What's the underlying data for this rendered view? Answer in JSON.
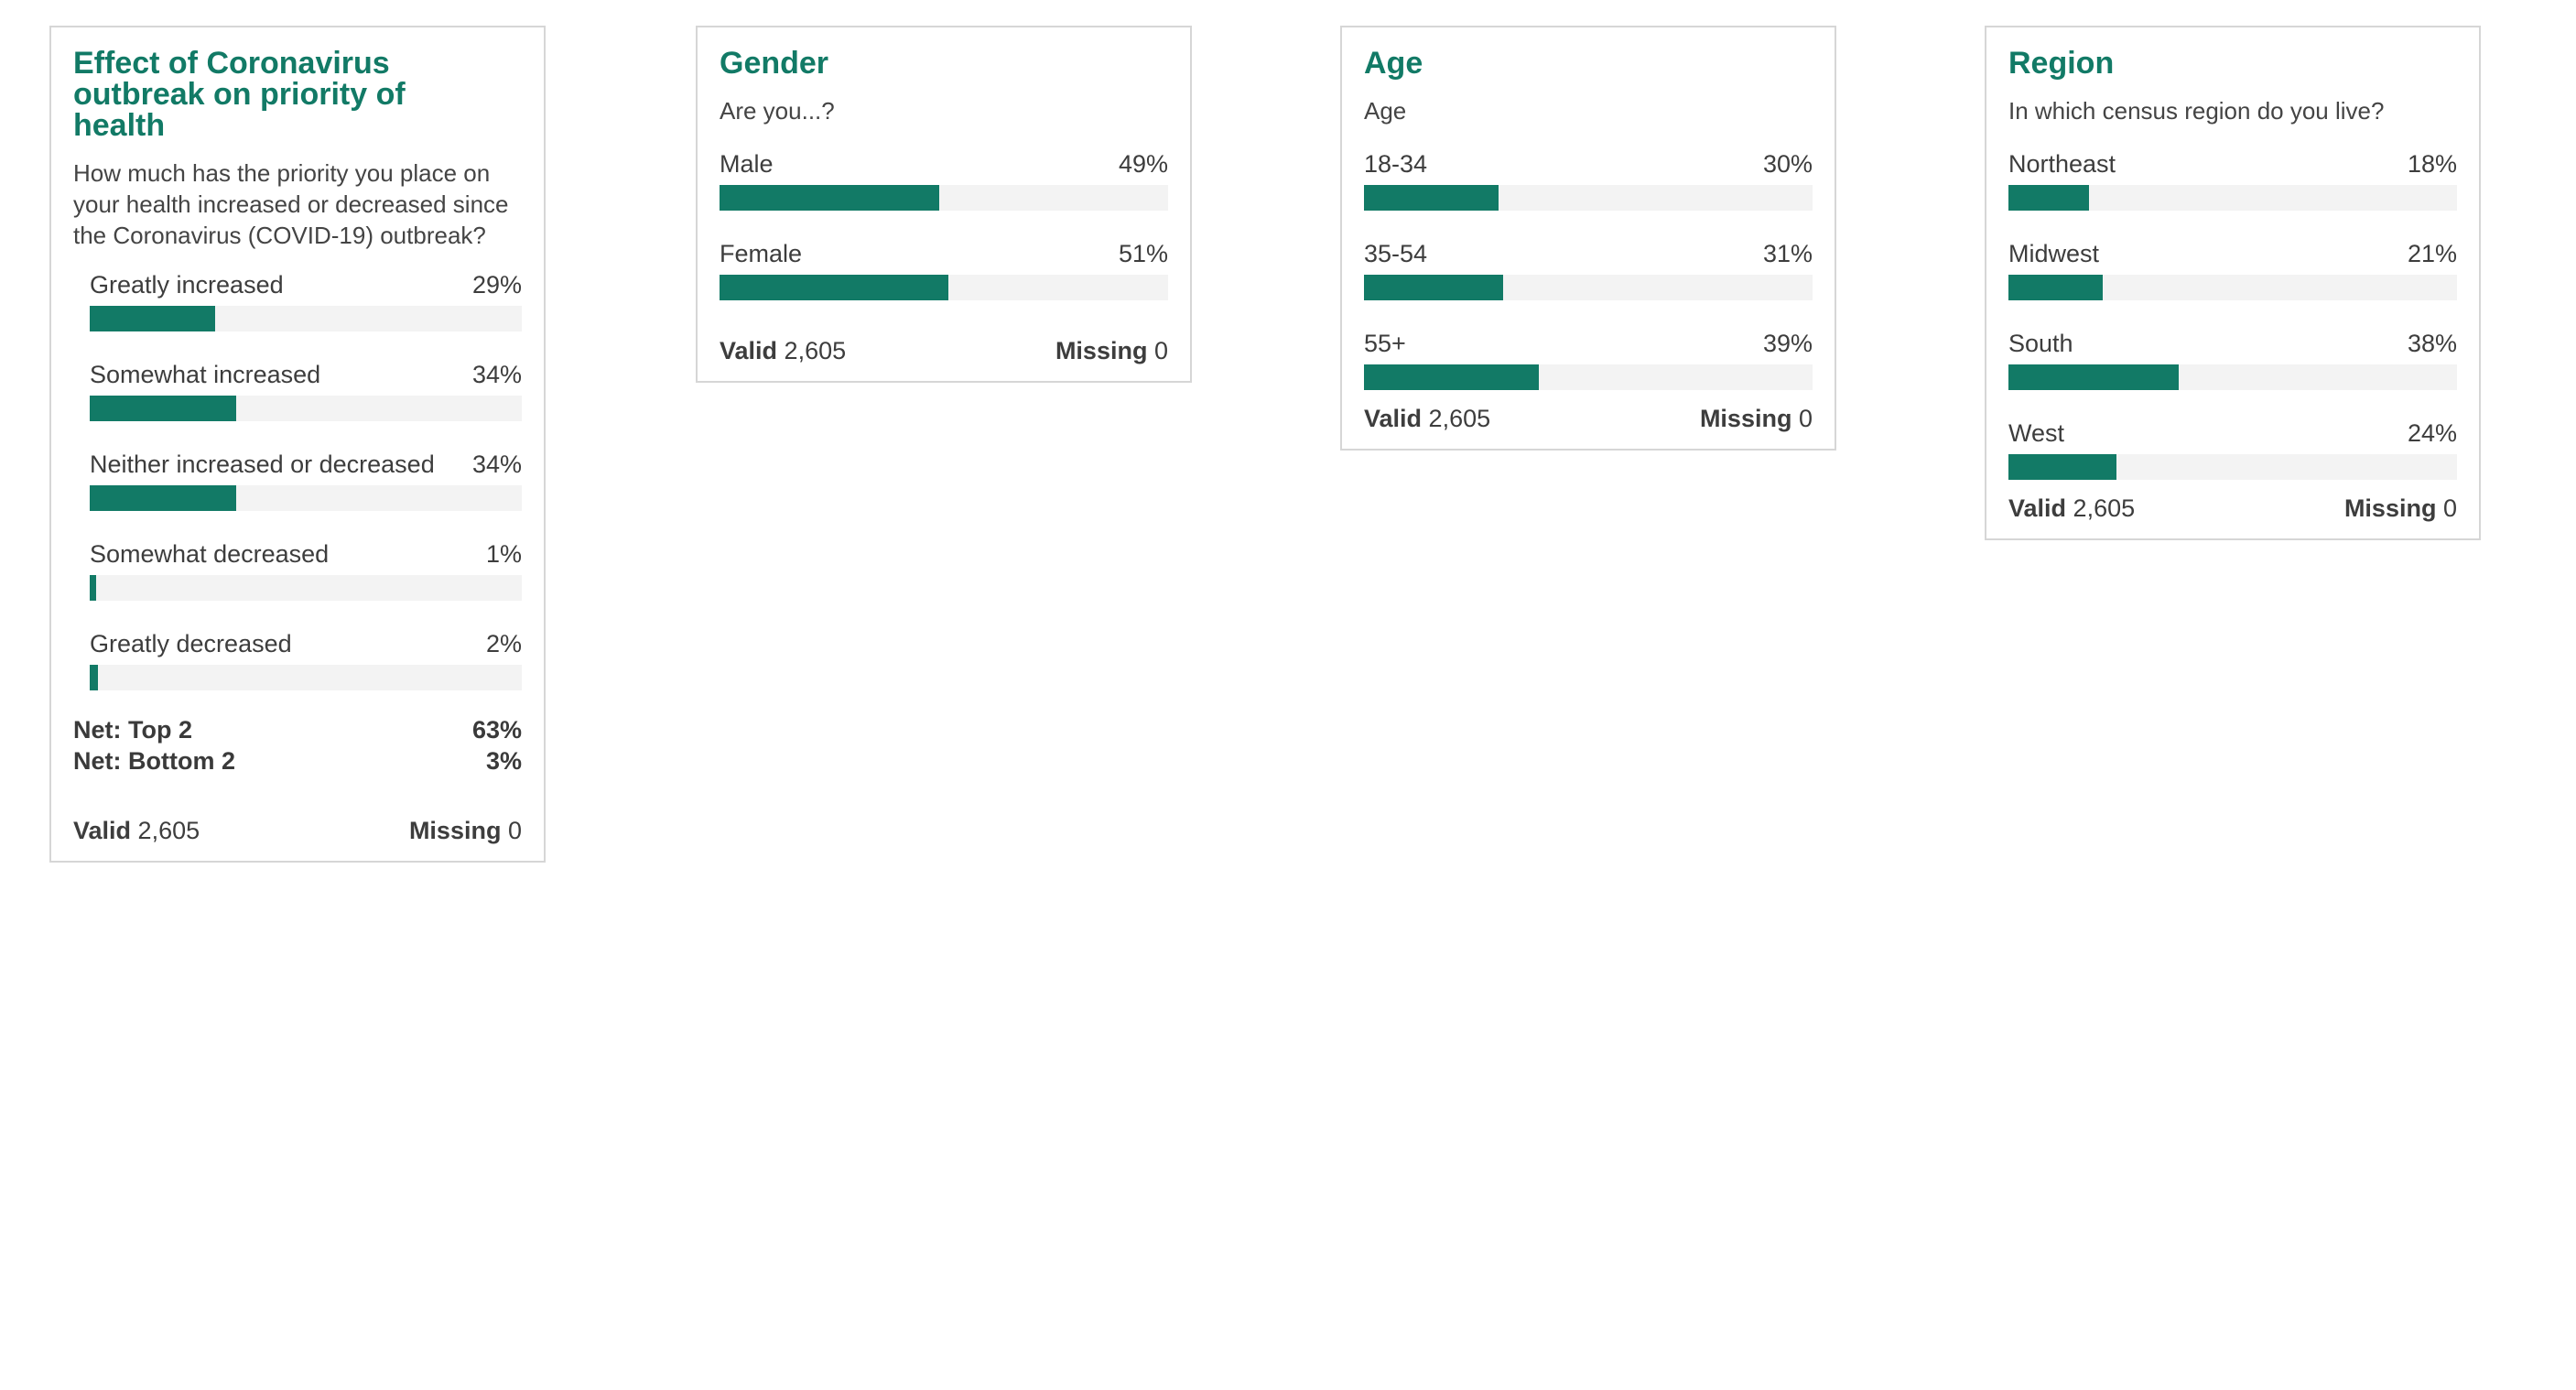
{
  "colors": {
    "accent": "#127a66",
    "track": "#f3f3f3",
    "border": "#d6d6d6"
  },
  "chart_data": [
    {
      "type": "bar",
      "title": "Effect of Coronavirus outbreak on priority of health",
      "subtitle": "How much has the priority you place on your health increased or decreased since the Coronavirus (COVID-19) outbreak?",
      "categories": [
        "Greatly increased",
        "Somewhat increased",
        "Neither increased or decreased",
        "Somewhat decreased",
        "Greatly decreased"
      ],
      "values": [
        29,
        34,
        34,
        1,
        2
      ],
      "value_labels": [
        "29%",
        "34%",
        "34%",
        "1%",
        "2%"
      ],
      "ylim": [
        0,
        100
      ],
      "nets": [
        {
          "label": "Net: Top 2",
          "value": "63%"
        },
        {
          "label": "Net: Bottom 2",
          "value": "3%"
        }
      ],
      "valid_label": "Valid",
      "valid_value": "2,605",
      "missing_label": "Missing",
      "missing_value": "0"
    },
    {
      "type": "bar",
      "title": "Gender",
      "subtitle": "Are you...?",
      "categories": [
        "Male",
        "Female"
      ],
      "values": [
        49,
        51
      ],
      "value_labels": [
        "49%",
        "51%"
      ],
      "ylim": [
        0,
        100
      ],
      "valid_label": "Valid",
      "valid_value": "2,605",
      "missing_label": "Missing",
      "missing_value": "0"
    },
    {
      "type": "bar",
      "title": "Age",
      "subtitle": "Age",
      "categories": [
        "18-34",
        "35-54",
        "55+"
      ],
      "values": [
        30,
        31,
        39
      ],
      "value_labels": [
        "30%",
        "31%",
        "39%"
      ],
      "ylim": [
        0,
        100
      ],
      "valid_label": "Valid",
      "valid_value": "2,605",
      "missing_label": "Missing",
      "missing_value": "0"
    },
    {
      "type": "bar",
      "title": "Region",
      "subtitle": "In which census region do you live?",
      "categories": [
        "Northeast",
        "Midwest",
        "South",
        "West"
      ],
      "values": [
        18,
        21,
        38,
        24
      ],
      "value_labels": [
        "18%",
        "21%",
        "38%",
        "24%"
      ],
      "ylim": [
        0,
        100
      ],
      "valid_label": "Valid",
      "valid_value": "2,605",
      "missing_label": "Missing",
      "missing_value": "0"
    }
  ]
}
